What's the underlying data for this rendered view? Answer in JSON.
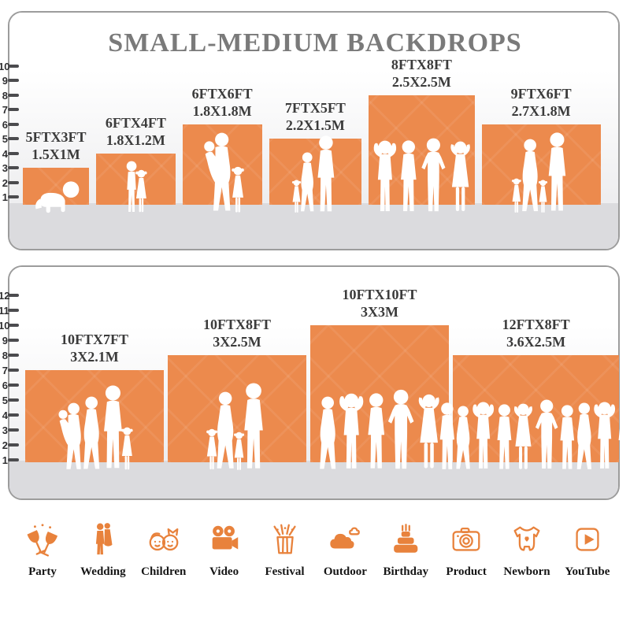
{
  "colors": {
    "backdrop_orange": "#EC8A4D",
    "floor_gray": "#DBDBDE",
    "panel_border": "#9C9C9C",
    "title_gray": "#7A7A7A",
    "label_dark": "#3B3B3B",
    "icon_orange": "#E8823C",
    "tick_dark": "#4B4B4E",
    "silhouette_white": "#FFFFFF"
  },
  "chart_data": {
    "type": "bar",
    "title": "SMALL-MEDIUM BACKDROPS",
    "subtitle": "",
    "units": "backdrop width x height, feet and meters; left ruler marks feet",
    "legend_position": "none",
    "grid": "off",
    "panels": [
      {
        "name": "top-panel",
        "ruler_labels": [
          "1",
          "2",
          "3",
          "4",
          "5",
          "6",
          "7",
          "8",
          "9",
          "10"
        ],
        "ruler_max": 10,
        "backdrops": [
          {
            "label_ft": "5FTX3FT",
            "label_m": "1.5X1M",
            "width_ft": 5,
            "height_ft": 3,
            "people": [
              {
                "type": "baby",
                "s": 0.4
              }
            ]
          },
          {
            "label_ft": "6FTX4FT",
            "label_m": "1.8X1.2M",
            "width_ft": 6,
            "height_ft": 4,
            "people": [
              {
                "type": "boy",
                "s": 0.62
              },
              {
                "type": "girl",
                "s": 0.52
              }
            ]
          },
          {
            "label_ft": "6FTX6FT",
            "label_m": "1.8X1.8M",
            "width_ft": 6,
            "height_ft": 6,
            "people": [
              {
                "type": "womanbaby",
                "s": 0.95
              },
              {
                "type": "girl",
                "s": 0.56
              }
            ]
          },
          {
            "label_ft": "7FTX5FT",
            "label_m": "2.2X1.5M",
            "width_ft": 7,
            "height_ft": 5,
            "people": [
              {
                "type": "girl",
                "s": 0.4
              },
              {
                "type": "woman",
                "s": 0.72
              },
              {
                "type": "man",
                "s": 0.92
              }
            ]
          },
          {
            "label_ft": "8FTX8FT",
            "label_m": "2.5X2.5M",
            "width_ft": 8,
            "height_ft": 8,
            "people": [
              {
                "type": "manup",
                "s": 0.88
              },
              {
                "type": "man",
                "s": 0.86
              },
              {
                "type": "manhips",
                "s": 0.9
              },
              {
                "type": "womanup",
                "s": 0.86
              }
            ]
          },
          {
            "label_ft": "9FTX6FT",
            "label_m": "2.7X1.8M",
            "width_ft": 9,
            "height_ft": 6,
            "people": [
              {
                "type": "girl",
                "s": 0.42
              },
              {
                "type": "woman",
                "s": 0.88
              },
              {
                "type": "girl",
                "s": 0.4
              },
              {
                "type": "man",
                "s": 0.95
              }
            ]
          }
        ]
      },
      {
        "name": "bottom-panel",
        "ruler_labels": [
          "1",
          "2",
          "3",
          "4",
          "5",
          "6",
          "7",
          "8",
          "9",
          "10",
          "11",
          "12"
        ],
        "ruler_max": 12,
        "backdrops": [
          {
            "label_ft": "10FTX7FT",
            "label_m": "3X2.1M",
            "width_ft": 10,
            "height_ft": 7,
            "people": [
              {
                "type": "womanbaby",
                "s": 0.78
              },
              {
                "type": "woman",
                "s": 0.85
              },
              {
                "type": "man",
                "s": 0.97
              },
              {
                "type": "girl",
                "s": 0.5
              }
            ]
          },
          {
            "label_ft": "10FTX8FT",
            "label_m": "3X2.5M",
            "width_ft": 10,
            "height_ft": 8,
            "people": [
              {
                "type": "girl",
                "s": 0.48
              },
              {
                "type": "woman",
                "s": 0.9
              },
              {
                "type": "girl",
                "s": 0.45
              },
              {
                "type": "man",
                "s": 1.0
              }
            ]
          },
          {
            "label_ft": "10FTX10FT",
            "label_m": "3X3M",
            "width_ft": 10,
            "height_ft": 10,
            "people": [
              {
                "type": "woman",
                "s": 0.85
              },
              {
                "type": "manup",
                "s": 0.9
              },
              {
                "type": "man",
                "s": 0.88
              },
              {
                "type": "manhips",
                "s": 0.94
              },
              {
                "type": "womanup",
                "s": 0.88
              }
            ]
          },
          {
            "label_ft": "12FTX8FT",
            "label_m": "3.6X2.5M",
            "width_ft": 12,
            "height_ft": 8,
            "people": [
              {
                "type": "man",
                "s": 0.78
              },
              {
                "type": "woman",
                "s": 0.74
              },
              {
                "type": "manup",
                "s": 0.8
              },
              {
                "type": "man",
                "s": 0.76
              },
              {
                "type": "womanup",
                "s": 0.78
              },
              {
                "type": "manhips",
                "s": 0.82
              },
              {
                "type": "man",
                "s": 0.75
              },
              {
                "type": "woman",
                "s": 0.78
              },
              {
                "type": "manup",
                "s": 0.8
              },
              {
                "type": "man",
                "s": 0.76
              }
            ]
          }
        ]
      }
    ]
  },
  "categories": {
    "items": [
      {
        "label": "Party",
        "icon": "party-icon"
      },
      {
        "label": "Wedding",
        "icon": "wedding-icon"
      },
      {
        "label": "Children",
        "icon": "children-icon"
      },
      {
        "label": "Video",
        "icon": "video-icon"
      },
      {
        "label": "Festival",
        "icon": "festival-icon"
      },
      {
        "label": "Outdoor",
        "icon": "outdoor-icon"
      },
      {
        "label": "Birthday",
        "icon": "birthday-icon"
      },
      {
        "label": "Product",
        "icon": "product-icon"
      },
      {
        "label": "Newborn",
        "icon": "newborn-icon"
      },
      {
        "label": "YouTube",
        "icon": "youtube-icon"
      }
    ]
  }
}
